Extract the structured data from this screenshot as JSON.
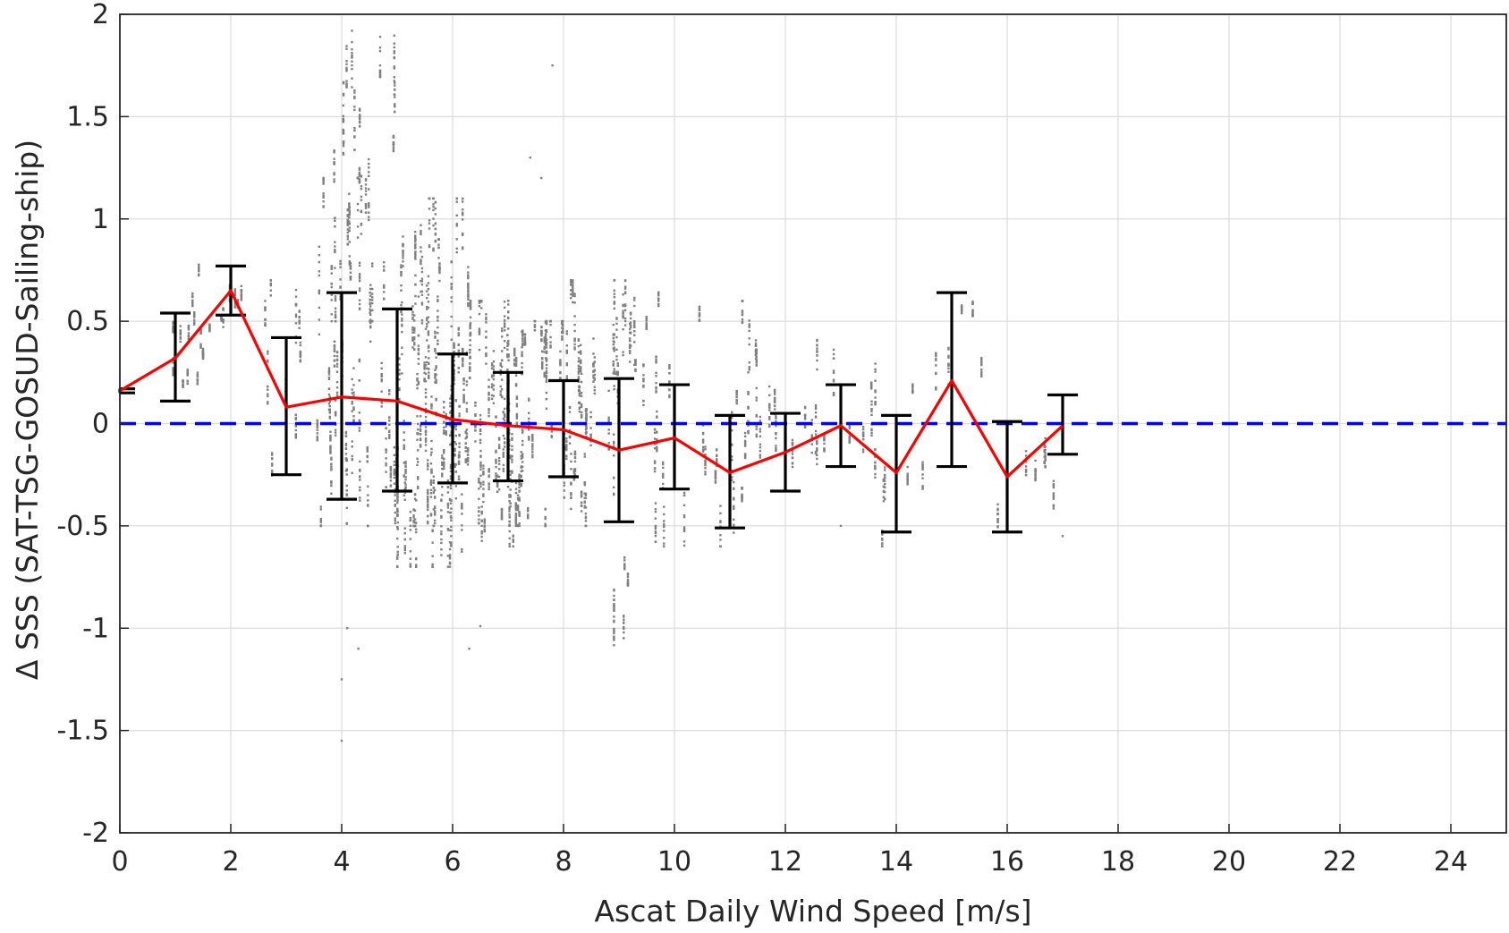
{
  "chart_data": {
    "type": "scatter",
    "title": "",
    "xlabel": "Ascat Daily Wind Speed [m/s]",
    "ylabel": "Δ SSS (SAT-TSG-GOSUD-Sailing-ship)",
    "xlim": [
      0,
      25
    ],
    "ylim": [
      -2,
      2
    ],
    "xticks": [
      "0",
      "2",
      "4",
      "6",
      "8",
      "10",
      "12",
      "14",
      "16",
      "18",
      "20",
      "22",
      "24"
    ],
    "yticks": [
      "2",
      "1.5",
      "1",
      "0.5",
      "0",
      "-0.5",
      "-1",
      "-1.5",
      "-2"
    ],
    "grid": true,
    "colors": {
      "scatter": "#808080",
      "mean_line": "#ff0000",
      "error_bars": "#000000",
      "zero_line": "#0000ff",
      "grid": "#dcdcdc",
      "axes": "#262626"
    },
    "reference_line": {
      "y": 0,
      "style": "dashed"
    },
    "binned_mean": {
      "x": [
        0,
        1,
        2,
        3,
        4,
        5,
        6,
        7,
        8,
        9,
        10,
        11,
        12,
        13,
        14,
        15,
        16,
        17
      ],
      "mean": [
        0.16,
        0.32,
        0.65,
        0.08,
        0.13,
        0.11,
        0.02,
        -0.01,
        -0.03,
        -0.13,
        -0.07,
        -0.24,
        -0.14,
        -0.01,
        -0.24,
        0.21,
        -0.26,
        -0.01
      ],
      "lower": [
        0.15,
        0.11,
        0.53,
        -0.25,
        -0.37,
        -0.33,
        -0.29,
        -0.28,
        -0.26,
        -0.48,
        -0.32,
        -0.51,
        -0.33,
        -0.21,
        -0.53,
        -0.21,
        -0.53,
        -0.15
      ],
      "upper": [
        0.17,
        0.54,
        0.77,
        0.42,
        0.64,
        0.56,
        0.34,
        0.25,
        0.21,
        0.22,
        0.19,
        0.04,
        0.05,
        0.19,
        0.04,
        0.64,
        0.01,
        0.14
      ]
    },
    "scatter_clusters": [
      {
        "x": [
          0.5,
          1.6
        ],
        "y": [
          0.1,
          0.5
        ],
        "n": 90
      },
      {
        "x": [
          1.3,
          2.6
        ],
        "y": [
          0.3,
          0.8
        ],
        "n": 140
      },
      {
        "x": [
          2.6,
          3.4
        ],
        "y": [
          -0.3,
          0.7
        ],
        "n": 110
      },
      {
        "x": [
          3.5,
          4.3
        ],
        "y": [
          -0.5,
          1.2
        ],
        "n": 260
      },
      {
        "x": [
          3.8,
          5.0
        ],
        "y": [
          0.5,
          2.0
        ],
        "n": 260
      },
      {
        "x": [
          4.3,
          5.9
        ],
        "y": [
          -0.5,
          0.9
        ],
        "n": 420
      },
      {
        "x": [
          5.0,
          6.3
        ],
        "y": [
          -0.7,
          1.1
        ],
        "n": 550
      },
      {
        "x": [
          5.8,
          7.2
        ],
        "y": [
          -0.6,
          0.6
        ],
        "n": 520
      },
      {
        "x": [
          6.8,
          8.5
        ],
        "y": [
          -0.5,
          0.5
        ],
        "n": 500
      },
      {
        "x": [
          8.0,
          9.8
        ],
        "y": [
          -0.5,
          0.7
        ],
        "n": 400
      },
      {
        "x": [
          8.9,
          9.3
        ],
        "y": [
          -1.1,
          -0.6
        ],
        "n": 60
      },
      {
        "x": [
          9.5,
          11.6
        ],
        "y": [
          -0.6,
          0.6
        ],
        "n": 280
      },
      {
        "x": [
          11.4,
          12.8
        ],
        "y": [
          -0.5,
          0.3
        ],
        "n": 100
      },
      {
        "x": [
          12.5,
          13.9
        ],
        "y": [
          -0.4,
          0.5
        ],
        "n": 80
      },
      {
        "x": [
          13.4,
          14.5
        ],
        "y": [
          -0.6,
          0.2
        ],
        "n": 90
      },
      {
        "x": [
          14.5,
          15.6
        ],
        "y": [
          -0.1,
          0.6
        ],
        "n": 60
      },
      {
        "x": [
          15.6,
          16.9
        ],
        "y": [
          -0.6,
          0.1
        ],
        "n": 70
      }
    ],
    "scatter_outliers": [
      {
        "x": 4.0,
        "y": -1.55
      },
      {
        "x": 4.0,
        "y": -1.25
      },
      {
        "x": 4.1,
        "y": -1.0
      },
      {
        "x": 4.3,
        "y": -1.1
      },
      {
        "x": 6.3,
        "y": -1.1
      },
      {
        "x": 6.5,
        "y": -0.99
      },
      {
        "x": 7.4,
        "y": 1.3
      },
      {
        "x": 7.6,
        "y": 1.2
      },
      {
        "x": 7.8,
        "y": 1.75
      },
      {
        "x": 13.0,
        "y": -0.5
      },
      {
        "x": 17.0,
        "y": -0.55
      }
    ]
  }
}
